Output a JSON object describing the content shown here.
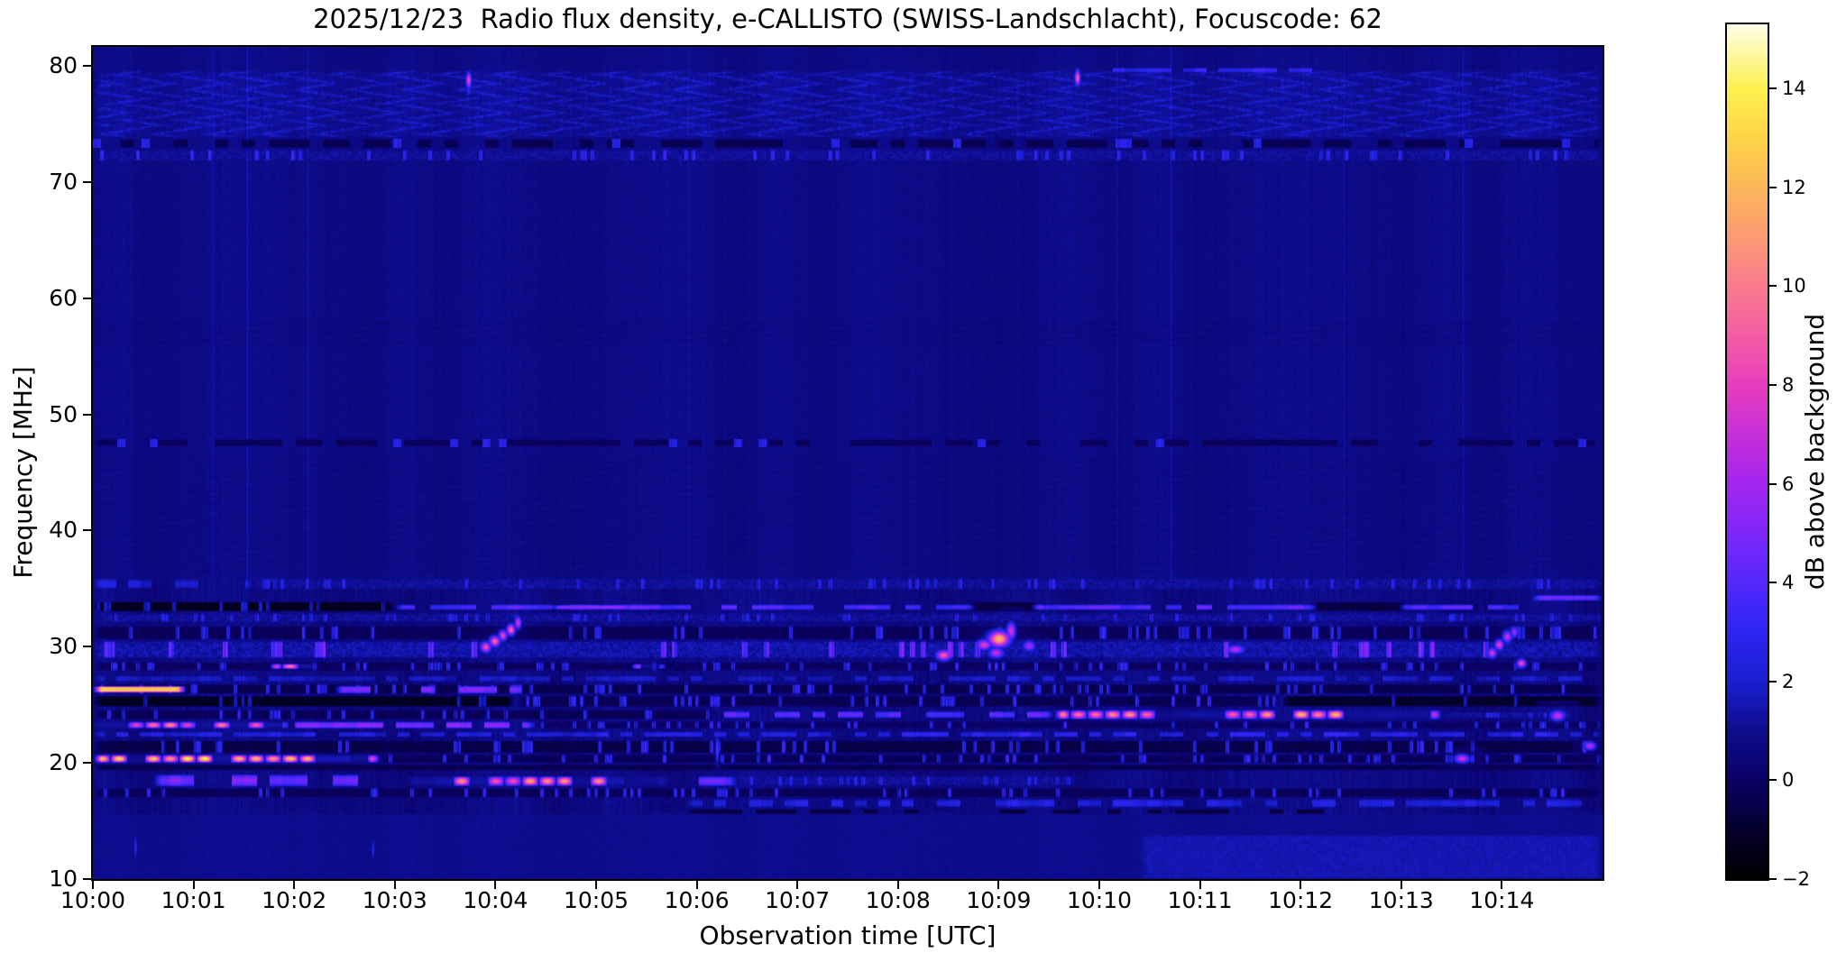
{
  "chart_data": {
    "type": "heatmap",
    "title": "2025/12/23  Radio flux density, e-CALLISTO (SWISS-Landschlacht), Focuscode: 62",
    "xlabel": "Observation time [UTC]",
    "ylabel": "Frequency [MHz]",
    "grid": false,
    "x_range_utc": [
      "10:00:00",
      "10:15:00"
    ],
    "x_ticks": [
      {
        "minute": 0,
        "label": "10:00"
      },
      {
        "minute": 1,
        "label": "10:01"
      },
      {
        "minute": 2,
        "label": "10:02"
      },
      {
        "minute": 3,
        "label": "10:03"
      },
      {
        "minute": 4,
        "label": "10:04"
      },
      {
        "minute": 5,
        "label": "10:05"
      },
      {
        "minute": 6,
        "label": "10:06"
      },
      {
        "minute": 7,
        "label": "10:07"
      },
      {
        "minute": 8,
        "label": "10:08"
      },
      {
        "minute": 9,
        "label": "10:09"
      },
      {
        "minute": 10,
        "label": "10:10"
      },
      {
        "minute": 11,
        "label": "10:11"
      },
      {
        "minute": 12,
        "label": "10:12"
      },
      {
        "minute": 13,
        "label": "10:13"
      },
      {
        "minute": 14,
        "label": "10:14"
      }
    ],
    "y_range_mhz": [
      10,
      81.63
    ],
    "y_ticks": [
      {
        "value": 80,
        "label": "80"
      },
      {
        "value": 70,
        "label": "70"
      },
      {
        "value": 60,
        "label": "60"
      },
      {
        "value": 50,
        "label": "50"
      },
      {
        "value": 40,
        "label": "40"
      },
      {
        "value": 30,
        "label": "30"
      },
      {
        "value": 20,
        "label": "20"
      },
      {
        "value": 10,
        "label": "10"
      }
    ],
    "colorbar": {
      "label": "dB above background",
      "range_db": [
        -2,
        15.3
      ],
      "ticks": [
        {
          "value": -2,
          "label": "−2"
        },
        {
          "value": 0,
          "label": "0"
        },
        {
          "value": 2,
          "label": "2"
        },
        {
          "value": 4,
          "label": "4"
        },
        {
          "value": 6,
          "label": "6"
        },
        {
          "value": 8,
          "label": "8"
        },
        {
          "value": 10,
          "label": "10"
        },
        {
          "value": 12,
          "label": "12"
        },
        {
          "value": 14,
          "label": "14"
        }
      ]
    },
    "colormap": {
      "name": "gnuplot2-like (black-blue-violet-magenta-orange-yellow-white)",
      "stops": [
        [
          -2.0,
          "#000000"
        ],
        [
          -1.0,
          "#05002e"
        ],
        [
          0.0,
          "#0b0166"
        ],
        [
          1.0,
          "#0e0d8e"
        ],
        [
          2.0,
          "#1a1fd0"
        ],
        [
          3.0,
          "#2e25f2"
        ],
        [
          4.0,
          "#5628fb"
        ],
        [
          5.0,
          "#7e27fa"
        ],
        [
          6.0,
          "#a426ef"
        ],
        [
          7.0,
          "#c72fd9"
        ],
        [
          8.0,
          "#e83ebe"
        ],
        [
          9.0,
          "#f45da4"
        ],
        [
          10.0,
          "#fa7b8e"
        ],
        [
          11.0,
          "#fc9a74"
        ],
        [
          12.0,
          "#fdb75b"
        ],
        [
          13.0,
          "#fed448"
        ],
        [
          14.0,
          "#fdf04d"
        ],
        [
          15.3,
          "#ffffe8"
        ]
      ]
    },
    "background_level_db": {
      "above_35mhz": 0.8,
      "15_to_35mhz": 0.7,
      "below_15mhz": 0.9
    },
    "bands": [
      {
        "f": [
          73.8,
          79.6
        ],
        "t": [
          0,
          15
        ],
        "style": "chevron",
        "db": 1.1,
        "note": "wavy interference texture band 74-79 MHz"
      },
      {
        "f": [
          71.8,
          72.8
        ],
        "t": [
          0,
          15
        ],
        "style": "speck",
        "db": 2.0,
        "note": "speckled blue row"
      },
      {
        "f": [
          72.9,
          73.7
        ],
        "t": [
          0,
          15
        ],
        "style": "dark-dash",
        "db": -0.6,
        "note": "dark dashed channel ~73.3 MHz"
      },
      {
        "f": [
          55.8,
          58.2
        ],
        "t": [
          0,
          15
        ],
        "style": "wisp-dark",
        "db": -0.35,
        "note": "faint dark diagonal wisps"
      },
      {
        "f": [
          36.2,
          46.5
        ],
        "t": [
          0,
          15
        ],
        "style": "wisp-dark",
        "db": -0.3,
        "note": "faint dark diagonal wisps"
      },
      {
        "f": [
          47.2,
          47.9
        ],
        "t": [
          0,
          15
        ],
        "style": "dark-dash",
        "db": -0.45,
        "note": "dark dashed channel ~47.5 MHz"
      },
      {
        "f": [
          79.35,
          79.9
        ],
        "t": [
          9.9,
          12.6
        ],
        "style": "blue-dash",
        "db": 3.3,
        "note": "light-blue streak after 10:09:50"
      },
      {
        "f": [
          34.9,
          35.9
        ],
        "t": [
          0,
          1.6
        ],
        "style": "blue-dash",
        "db": 2.4
      },
      {
        "f": [
          34.9,
          35.9
        ],
        "t": [
          1.6,
          15
        ],
        "style": "speck",
        "db": 1.6
      },
      {
        "f": [
          33.0,
          33.9
        ],
        "t": [
          0,
          3.0
        ],
        "style": "black",
        "db": -1.6,
        "note": "black absorption band until ~10:03"
      },
      {
        "f": [
          33.1,
          33.7
        ],
        "t": [
          3.0,
          14.25
        ],
        "style": "bright-dash-line",
        "db": 3.9,
        "note": "bright blue line after 10:03"
      },
      {
        "f": [
          33.0,
          33.9
        ],
        "t": [
          8.7,
          9.4
        ],
        "style": "dark",
        "db": -0.9
      },
      {
        "f": [
          33.0,
          33.9
        ],
        "t": [
          12.1,
          13.05
        ],
        "style": "dark",
        "db": -0.9
      },
      {
        "f": [
          33.15,
          33.65
        ],
        "t": [
          4.55,
          5.35
        ],
        "style": "solid",
        "db": 5.3,
        "note": "bright violet segment ~10:04:50"
      },
      {
        "f": [
          33.9,
          34.5
        ],
        "t": [
          14.3,
          15
        ],
        "style": "solid",
        "db": 4.5,
        "note": "bright segment at right edge"
      },
      {
        "f": [
          32.1,
          32.9
        ],
        "t": [
          0,
          15
        ],
        "style": "speck",
        "db": 1.5
      },
      {
        "f": [
          30.6,
          31.8
        ],
        "t": [
          0,
          15
        ],
        "style": "dark-speck",
        "db": -0.5
      },
      {
        "f": [
          29.0,
          30.5
        ],
        "t": [
          0,
          15
        ],
        "style": "speck-bright",
        "db": 1.7
      },
      {
        "f": [
          27.9,
          28.7
        ],
        "t": [
          0,
          15
        ],
        "style": "dark-speck",
        "db": -0.4
      },
      {
        "f": [
          28.0,
          28.6
        ],
        "t": [
          1.75,
          2.25
        ],
        "style": "hotblobs",
        "db": 9.8,
        "note": "orange dashes ~10:02, 28.3 MHz"
      },
      {
        "f": [
          28.0,
          28.6
        ],
        "t": [
          5.35,
          5.7
        ],
        "style": "hotblobs",
        "db": 9.5
      },
      {
        "f": [
          26.9,
          27.6
        ],
        "t": [
          0,
          15
        ],
        "style": "blue-dash",
        "db": 2.1
      },
      {
        "f": [
          25.9,
          26.8
        ],
        "t": [
          0,
          15
        ],
        "style": "dark-speck",
        "db": -0.7
      },
      {
        "f": [
          26.0,
          26.65
        ],
        "t": [
          0,
          0.93
        ],
        "style": "hot-solid",
        "db": 12.7,
        "note": "intense yellow RFI band 10:00-10:00:56 at 26.3 MHz"
      },
      {
        "f": [
          25.9,
          26.7
        ],
        "t": [
          2.4,
          4.3
        ],
        "style": "dash",
        "db": 4.2
      },
      {
        "f": [
          24.8,
          25.8
        ],
        "t": [
          0,
          4.2
        ],
        "style": "black",
        "db": -1.5
      },
      {
        "f": [
          24.8,
          25.8
        ],
        "t": [
          4.2,
          11.8
        ],
        "style": "dark-speck",
        "db": -0.6
      },
      {
        "f": [
          24.8,
          25.8
        ],
        "t": [
          11.8,
          15
        ],
        "style": "black",
        "db": -1.3
      },
      {
        "f": [
          23.7,
          24.6
        ],
        "t": [
          0,
          6.2
        ],
        "style": "dark-speck",
        "db": -0.5
      },
      {
        "f": [
          23.8,
          24.5
        ],
        "t": [
          6.2,
          9.55
        ],
        "style": "dash",
        "db": 3.4
      },
      {
        "f": [
          23.7,
          24.6
        ],
        "t": [
          9.55,
          13.4
        ],
        "style": "hotblobs",
        "db": 10.8,
        "note": "bright orange blob train 10:09:30-10:13:25 at 24.1 MHz"
      },
      {
        "f": [
          23.8,
          24.4
        ],
        "t": [
          13.4,
          14.75
        ],
        "style": "speck",
        "db": 1.6
      },
      {
        "f": [
          22.9,
          23.6
        ],
        "t": [
          0,
          1.95
        ],
        "style": "hotblobs",
        "db": 9.5,
        "note": "orange/magenta dashes 10:00-10:02 at 23.2 MHz"
      },
      {
        "f": [
          22.9,
          23.6
        ],
        "t": [
          1.95,
          4.4
        ],
        "style": "dash",
        "db": 4.4
      },
      {
        "f": [
          22.9,
          23.6
        ],
        "t": [
          4.4,
          15
        ],
        "style": "dark-speck",
        "db": -0.3
      },
      {
        "f": [
          22.15,
          22.75
        ],
        "t": [
          0,
          7.5
        ],
        "style": "blue-dash",
        "db": 2.7,
        "note": "continuous blue dotted line 22.4 MHz"
      },
      {
        "f": [
          22.15,
          22.75
        ],
        "t": [
          7.5,
          15
        ],
        "style": "blue-dash",
        "db": 3.2
      },
      {
        "f": [
          20.8,
          21.95
        ],
        "t": [
          0,
          15
        ],
        "style": "dark-speck",
        "db": -0.8
      },
      {
        "f": [
          19.95,
          20.75
        ],
        "t": [
          0,
          2.85
        ],
        "style": "hotblobs",
        "db": 12.6,
        "note": "intense yellow/orange blobs 10:00-10:02:50 at 20.3 MHz"
      },
      {
        "f": [
          19.95,
          20.75
        ],
        "t": [
          2.85,
          15
        ],
        "style": "dark-speck",
        "db": -0.5
      },
      {
        "f": [
          19.3,
          19.9
        ],
        "t": [
          0,
          15
        ],
        "style": "dark",
        "db": -0.7
      },
      {
        "f": [
          17.9,
          19.05
        ],
        "t": [
          0.6,
          3.1
        ],
        "style": "dash",
        "db": 4.0
      },
      {
        "f": [
          17.95,
          18.9
        ],
        "t": [
          3.1,
          5.75
        ],
        "style": "hotblobs",
        "db": 10.3,
        "note": "orange/pink blob train 10:03-10:05:45 at 18.4 MHz"
      },
      {
        "f": [
          17.95,
          18.9
        ],
        "t": [
          5.75,
          6.4
        ],
        "style": "dash",
        "db": 3.4
      },
      {
        "f": [
          18.0,
          18.9
        ],
        "t": [
          6.4,
          9.8
        ],
        "style": "speck",
        "db": 1.5
      },
      {
        "f": [
          17.0,
          17.85
        ],
        "t": [
          0,
          15
        ],
        "style": "dark-speck",
        "db": -0.5
      },
      {
        "f": [
          16.1,
          16.95
        ],
        "t": [
          5.9,
          15
        ],
        "style": "blue-dash",
        "db": 2.7,
        "note": "blue dotted line from 10:06 onward"
      },
      {
        "f": [
          15.55,
          16.05
        ],
        "t": [
          5.9,
          13.1
        ],
        "style": "dark-dash",
        "db": -1.0
      },
      {
        "f": [
          10.0,
          13.8
        ],
        "t": [
          10.4,
          15
        ],
        "style": "solid-soft",
        "db": 1.3,
        "note": "slightly brighter bottom-right patch"
      }
    ],
    "bursts": [
      {
        "t": 3.73,
        "f": 78.8,
        "st": 0.018,
        "sf": 0.45,
        "db": 8.6,
        "note": "pink point burst 10:03:44, 78.8 MHz"
      },
      {
        "t": 3.73,
        "f": 77.9,
        "st": 0.014,
        "sf": 0.3,
        "db": 3.5
      },
      {
        "t": 9.78,
        "f": 79.0,
        "st": 0.018,
        "sf": 0.45,
        "db": 9.4,
        "note": "pink point burst 10:09:47, 79 MHz"
      },
      {
        "t": 3.9,
        "f": 30.0,
        "st": 0.035,
        "sf": 0.3,
        "db": 8.8,
        "note": "drifting burst chain 10:03:54-10:04:14 rising 30 to 32 MHz"
      },
      {
        "t": 3.99,
        "f": 30.5,
        "st": 0.035,
        "sf": 0.3,
        "db": 9.6
      },
      {
        "t": 4.07,
        "f": 31.0,
        "st": 0.028,
        "sf": 0.3,
        "db": 8.4
      },
      {
        "t": 4.15,
        "f": 31.5,
        "st": 0.028,
        "sf": 0.32,
        "db": 9.8
      },
      {
        "t": 4.22,
        "f": 32.1,
        "st": 0.022,
        "sf": 0.35,
        "db": 7.6
      },
      {
        "t": 8.45,
        "f": 29.3,
        "st": 0.05,
        "sf": 0.3,
        "db": 9.2,
        "note": "burst cluster 10:08:30-10:09:20, 29-31.5 MHz"
      },
      {
        "t": 8.85,
        "f": 30.2,
        "st": 0.05,
        "sf": 0.3,
        "db": 8.0
      },
      {
        "t": 8.97,
        "f": 29.5,
        "st": 0.05,
        "sf": 0.3,
        "db": 7.0
      },
      {
        "t": 9.0,
        "f": 30.7,
        "st": 0.07,
        "sf": 0.45,
        "db": 12.3
      },
      {
        "t": 9.12,
        "f": 31.4,
        "st": 0.03,
        "sf": 0.5,
        "db": 7.6
      },
      {
        "t": 9.3,
        "f": 30.1,
        "st": 0.04,
        "sf": 0.3,
        "db": 6.4
      },
      {
        "t": 11.35,
        "f": 29.8,
        "st": 0.06,
        "sf": 0.25,
        "db": 6.8
      },
      {
        "t": 13.9,
        "f": 29.5,
        "st": 0.03,
        "sf": 0.3,
        "db": 7.6,
        "note": "drifting burst 10:13:54-10:14:12 rising 29.5 to 31.3 MHz"
      },
      {
        "t": 13.97,
        "f": 30.2,
        "st": 0.03,
        "sf": 0.3,
        "db": 8.2
      },
      {
        "t": 14.05,
        "f": 30.9,
        "st": 0.03,
        "sf": 0.35,
        "db": 7.2
      },
      {
        "t": 14.12,
        "f": 31.3,
        "st": 0.025,
        "sf": 0.3,
        "db": 6.2
      },
      {
        "t": 14.19,
        "f": 28.6,
        "st": 0.03,
        "sf": 0.25,
        "db": 8.8
      },
      {
        "t": 14.55,
        "f": 24.1,
        "st": 0.05,
        "sf": 0.3,
        "db": 7.2
      },
      {
        "t": 13.6,
        "f": 20.4,
        "st": 0.05,
        "sf": 0.25,
        "db": 7.4
      },
      {
        "t": 14.87,
        "f": 21.5,
        "st": 0.04,
        "sf": 0.25,
        "db": 6.8
      },
      {
        "t": 6.2,
        "f": 21.2,
        "st": 0.012,
        "sf": 0.8,
        "db": 4.4,
        "note": "thin vertical blue streak 10:06:12"
      },
      {
        "t": 0.42,
        "f": 12.8,
        "st": 0.012,
        "sf": 0.7,
        "db": 2.9
      },
      {
        "t": 2.78,
        "f": 12.6,
        "st": 0.012,
        "sf": 0.6,
        "db": 2.7
      }
    ]
  }
}
